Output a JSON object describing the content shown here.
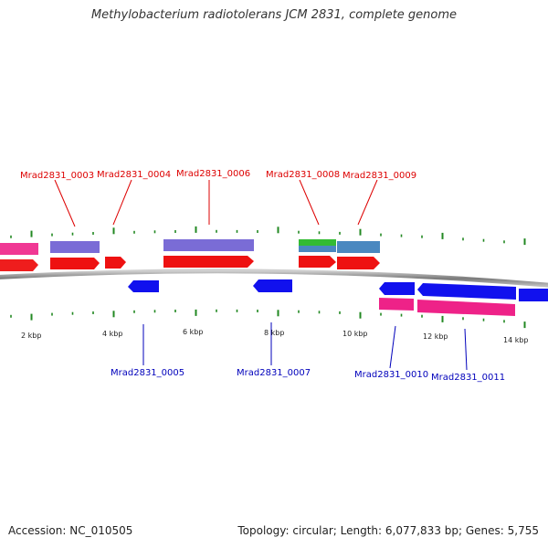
{
  "header": {
    "title": "Methylobacterium radiotolerans JCM 2831, complete genome"
  },
  "footer": {
    "accession": "Accession: NC_010505",
    "stats": "Topology: circular; Length: 6,077,833 bp; Genes: 5,755"
  },
  "colors": {
    "cds_forward": "#ee1111",
    "cds_reverse": "#1111ee",
    "gene_forward": "#ee2288",
    "gene_reverse": "#ee2288",
    "cog_purple": "#7a6cd6",
    "cog_green": "#33bb33",
    "cog_steel": "#4a88c0",
    "label_forward": "#dd0000",
    "label_reverse": "#0000bb",
    "backbone": "#8a8a8a",
    "tick": "#228822"
  },
  "scale": {
    "unit": "kbp",
    "major_ticks": [
      {
        "label": "2 kbp",
        "kb": 2
      },
      {
        "label": "4 kbp",
        "kb": 4
      },
      {
        "label": "6 kbp",
        "kb": 6
      },
      {
        "label": "8 kbp",
        "kb": 8
      },
      {
        "label": "10 kbp",
        "kb": 10
      },
      {
        "label": "12 kbp",
        "kb": 12
      },
      {
        "label": "14 kbp",
        "kb": 14
      }
    ]
  },
  "genes": [
    {
      "id": "Mrad2831_0003",
      "strand": "+",
      "start_kb": 2.3,
      "end_kb": 3.5,
      "cog": "cog_purple"
    },
    {
      "id": "Mrad2831_0004",
      "strand": "+",
      "start_kb": 3.8,
      "end_kb": 4.3,
      "cog": ""
    },
    {
      "id": "Mrad2831_0005",
      "strand": "-",
      "start_kb": 4.7,
      "end_kb": 5.4,
      "cog": ""
    },
    {
      "id": "Mrad2831_0006",
      "strand": "+",
      "start_kb": 5.4,
      "end_kb": 7.6,
      "cog": "cog_purple"
    },
    {
      "id": "Mrad2831_0007",
      "strand": "-",
      "start_kb": 7.6,
      "end_kb": 8.6,
      "cog": ""
    },
    {
      "id": "Mrad2831_0008",
      "strand": "+",
      "start_kb": 9.3,
      "end_kb": 10.2,
      "cog": "cog_green"
    },
    {
      "id": "Mrad2831_0009",
      "strand": "+",
      "start_kb": 10.2,
      "end_kb": 11.3,
      "cog": "cog_steel"
    },
    {
      "id": "Mrad2831_0010",
      "strand": "-",
      "start_kb": 11.3,
      "end_kb": 12.2,
      "cog": ""
    },
    {
      "id": "Mrad2831_0011",
      "strand": "-",
      "start_kb": 12.2,
      "end_kb": 14.6,
      "cog": ""
    }
  ]
}
